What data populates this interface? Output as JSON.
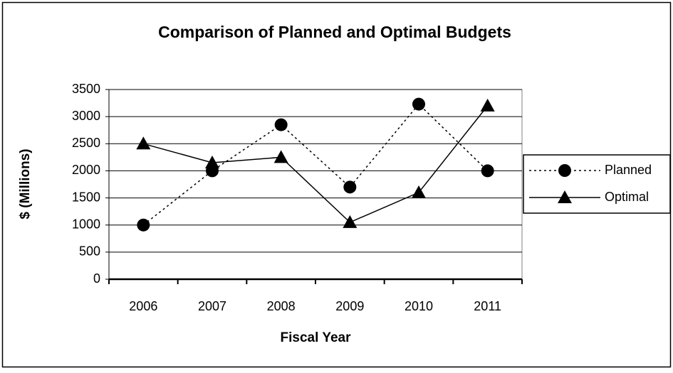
{
  "chart_data": {
    "type": "line",
    "title": "Comparison of Planned and Optimal Budgets",
    "x_label": "Fiscal Year",
    "y_label": "$ (Millions)",
    "categories": [
      "2006",
      "2007",
      "2008",
      "2009",
      "2010",
      "2011"
    ],
    "series": [
      {
        "name": "Planned",
        "color": "#000000",
        "line_style": "dotted",
        "marker": "circle",
        "values": [
          1000,
          2000,
          2850,
          1700,
          3230,
          2000
        ]
      },
      {
        "name": "Optimal",
        "color": "#000000",
        "line_style": "solid",
        "marker": "triangle",
        "values": [
          2500,
          2150,
          2250,
          1050,
          1600,
          3200
        ]
      }
    ],
    "ylim": [
      0,
      3500
    ],
    "yticks": [
      0,
      500,
      1000,
      1500,
      2000,
      2500,
      3000,
      3500
    ],
    "grid": true,
    "legend": "right"
  }
}
